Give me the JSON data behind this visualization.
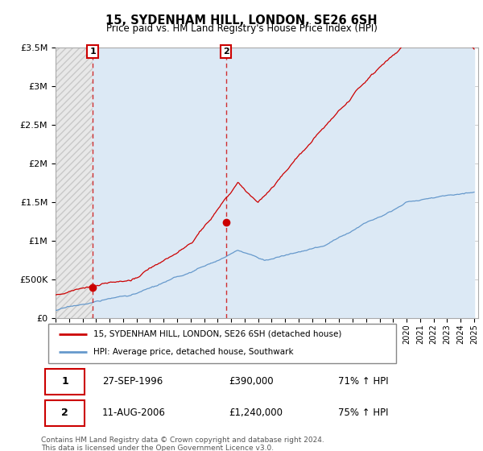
{
  "title": "15, SYDENHAM HILL, LONDON, SE26 6SH",
  "subtitle": "Price paid vs. HM Land Registry's House Price Index (HPI)",
  "ylim": [
    0,
    3500000
  ],
  "yticks": [
    0,
    500000,
    1000000,
    1500000,
    2000000,
    2500000,
    3000000,
    3500000
  ],
  "purchase1_date": "27-SEP-1996",
  "purchase1_price": 390000,
  "purchase1_label": "1",
  "purchase1_pct": "71% ↑ HPI",
  "purchase1_x_year": 1996.75,
  "purchase1_y": 390000,
  "purchase2_date": "11-AUG-2006",
  "purchase2_price": 1240000,
  "purchase2_label": "2",
  "purchase2_pct": "75% ↑ HPI",
  "purchase2_x_year": 2006.62,
  "purchase2_y": 1240000,
  "legend_line1": "15, SYDENHAM HILL, LONDON, SE26 6SH (detached house)",
  "legend_line2": "HPI: Average price, detached house, Southwark",
  "footer": "Contains HM Land Registry data © Crown copyright and database right 2024.\nThis data is licensed under the Open Government Licence v3.0.",
  "line1_color": "#cc0000",
  "line2_color": "#6699cc",
  "hatch_color": "#aaaaaa",
  "hatch_bg": "#e8e8e8",
  "bg_color": "#ffffff",
  "light_blue_bg": "#dce9f5",
  "grid_color": "#cccccc",
  "annotation_box_color": "#cc0000",
  "xmin": 1994,
  "xmax": 2025,
  "seed": 17
}
